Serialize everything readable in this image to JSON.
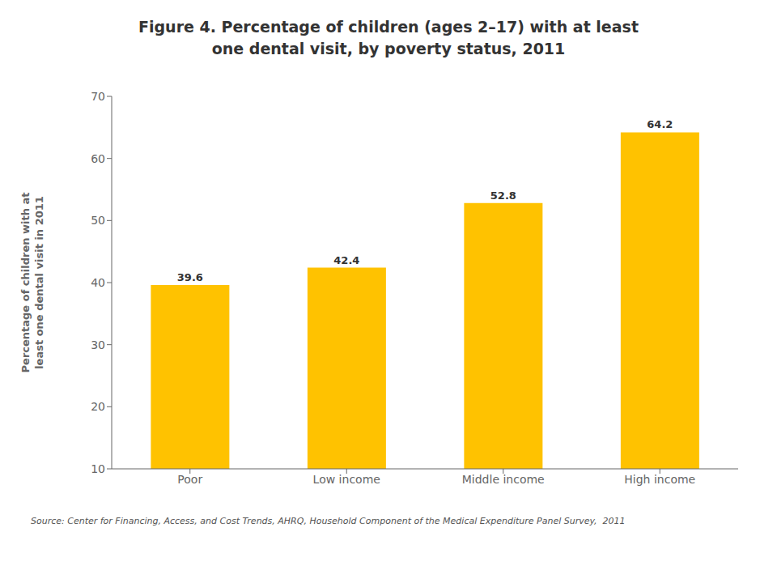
{
  "chart_data": {
    "type": "bar",
    "title": "Figure 4. Percentage of children (ages 2–17) with at least\none dental visit, by poverty status, 2011",
    "categories": [
      "Poor",
      "Low income",
      "Middle income",
      "High income"
    ],
    "values": [
      39.6,
      42.4,
      52.8,
      64.2
    ],
    "color": "#FFC200",
    "ylabel": "Percentage of children with at\nleast one dental visit in 2011",
    "ylim": [
      10,
      70
    ],
    "yticks": [
      10,
      20,
      30,
      40,
      50,
      60,
      70
    ],
    "grid": false,
    "data_labels": true,
    "annotations": [
      "Source: Center for Financing, Access, and Cost Trends, AHRQ, Household Component of the Medical Expenditure Panel Survey,  2011"
    ]
  }
}
